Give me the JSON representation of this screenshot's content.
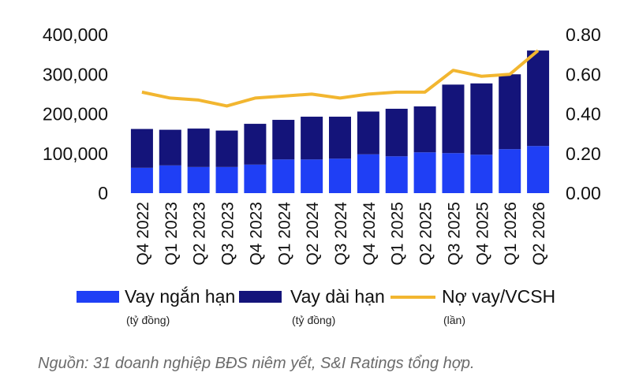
{
  "chart_data": {
    "type": "bar",
    "categories": [
      "Q4 2022",
      "Q1 2023",
      "Q2 2023",
      "Q3 2023",
      "Q4 2023",
      "Q1 2024",
      "Q2 2024",
      "Q3 2024",
      "Q4 2024",
      "Q1 2025",
      "Q2 2025",
      "Q3 2025",
      "Q4 2025",
      "Q1 2026",
      "Q2 2026"
    ],
    "stacked": true,
    "series": [
      {
        "name": "Vay ngắn hạn",
        "unit": "(tỷ đồng)",
        "kind": "bar",
        "axis": "left",
        "color": "#1f3ff5",
        "values": [
          64000,
          70000,
          66000,
          66000,
          72000,
          85000,
          85000,
          87000,
          98000,
          93000,
          103000,
          101000,
          97000,
          111000,
          119000
        ]
      },
      {
        "name": "Vay dài hạn",
        "unit": "(tỷ đồng)",
        "kind": "bar",
        "axis": "left",
        "color": "#14147a",
        "values": [
          98000,
          90000,
          97000,
          92000,
          103000,
          100000,
          108000,
          106000,
          108000,
          120000,
          116000,
          173000,
          180000,
          189000,
          241000
        ]
      },
      {
        "name": "Nợ vay/VCSH",
        "unit": "(lần)",
        "kind": "line",
        "axis": "right",
        "color": "#f2b630",
        "values": [
          0.51,
          0.48,
          0.47,
          0.44,
          0.48,
          0.49,
          0.5,
          0.48,
          0.5,
          0.51,
          0.51,
          0.62,
          0.59,
          0.6,
          0.72
        ]
      }
    ],
    "left_axis": {
      "ylim": [
        0,
        400000
      ],
      "ticks": [
        "0",
        "100,000",
        "200,000",
        "300,000",
        "400,000"
      ],
      "tick_values": [
        0,
        100000,
        200000,
        300000,
        400000
      ]
    },
    "right_axis": {
      "ylim": [
        0,
        0.8
      ],
      "ticks": [
        "0.00",
        "0.20",
        "0.40",
        "0.60",
        "0.80"
      ],
      "tick_values": [
        0,
        0.2,
        0.4,
        0.6,
        0.8
      ]
    },
    "legend_position": "bottom",
    "grid": false
  },
  "source": "Nguồn: 31 doanh nghiệp BĐS niêm yết,  S&I Ratings tổng hợp."
}
